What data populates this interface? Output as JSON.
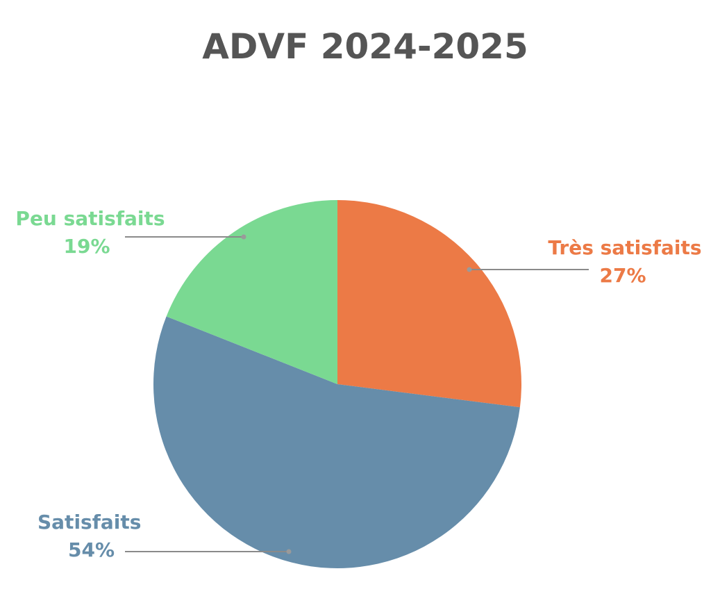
{
  "chart_data": {
    "type": "pie",
    "title": "ADVF 2024-2025",
    "categories": [
      "Très satisfaits",
      "Satisfaits",
      "Peu satisfaits"
    ],
    "values": [
      27,
      54,
      19
    ],
    "unit": "%",
    "colors": [
      "#EC7A46",
      "#668DAA",
      "#7AD992"
    ],
    "start_angle": "top, clockwise",
    "legend": "none (direct labels with leader lines)"
  },
  "title": "ADVF 2024-2025",
  "labels": {
    "tres": {
      "name": "Très satisfaits",
      "pct": "27%"
    },
    "sat": {
      "name": "Satisfaits",
      "pct": "54%"
    },
    "peu": {
      "name": "Peu satisfaits",
      "pct": "19%"
    }
  }
}
